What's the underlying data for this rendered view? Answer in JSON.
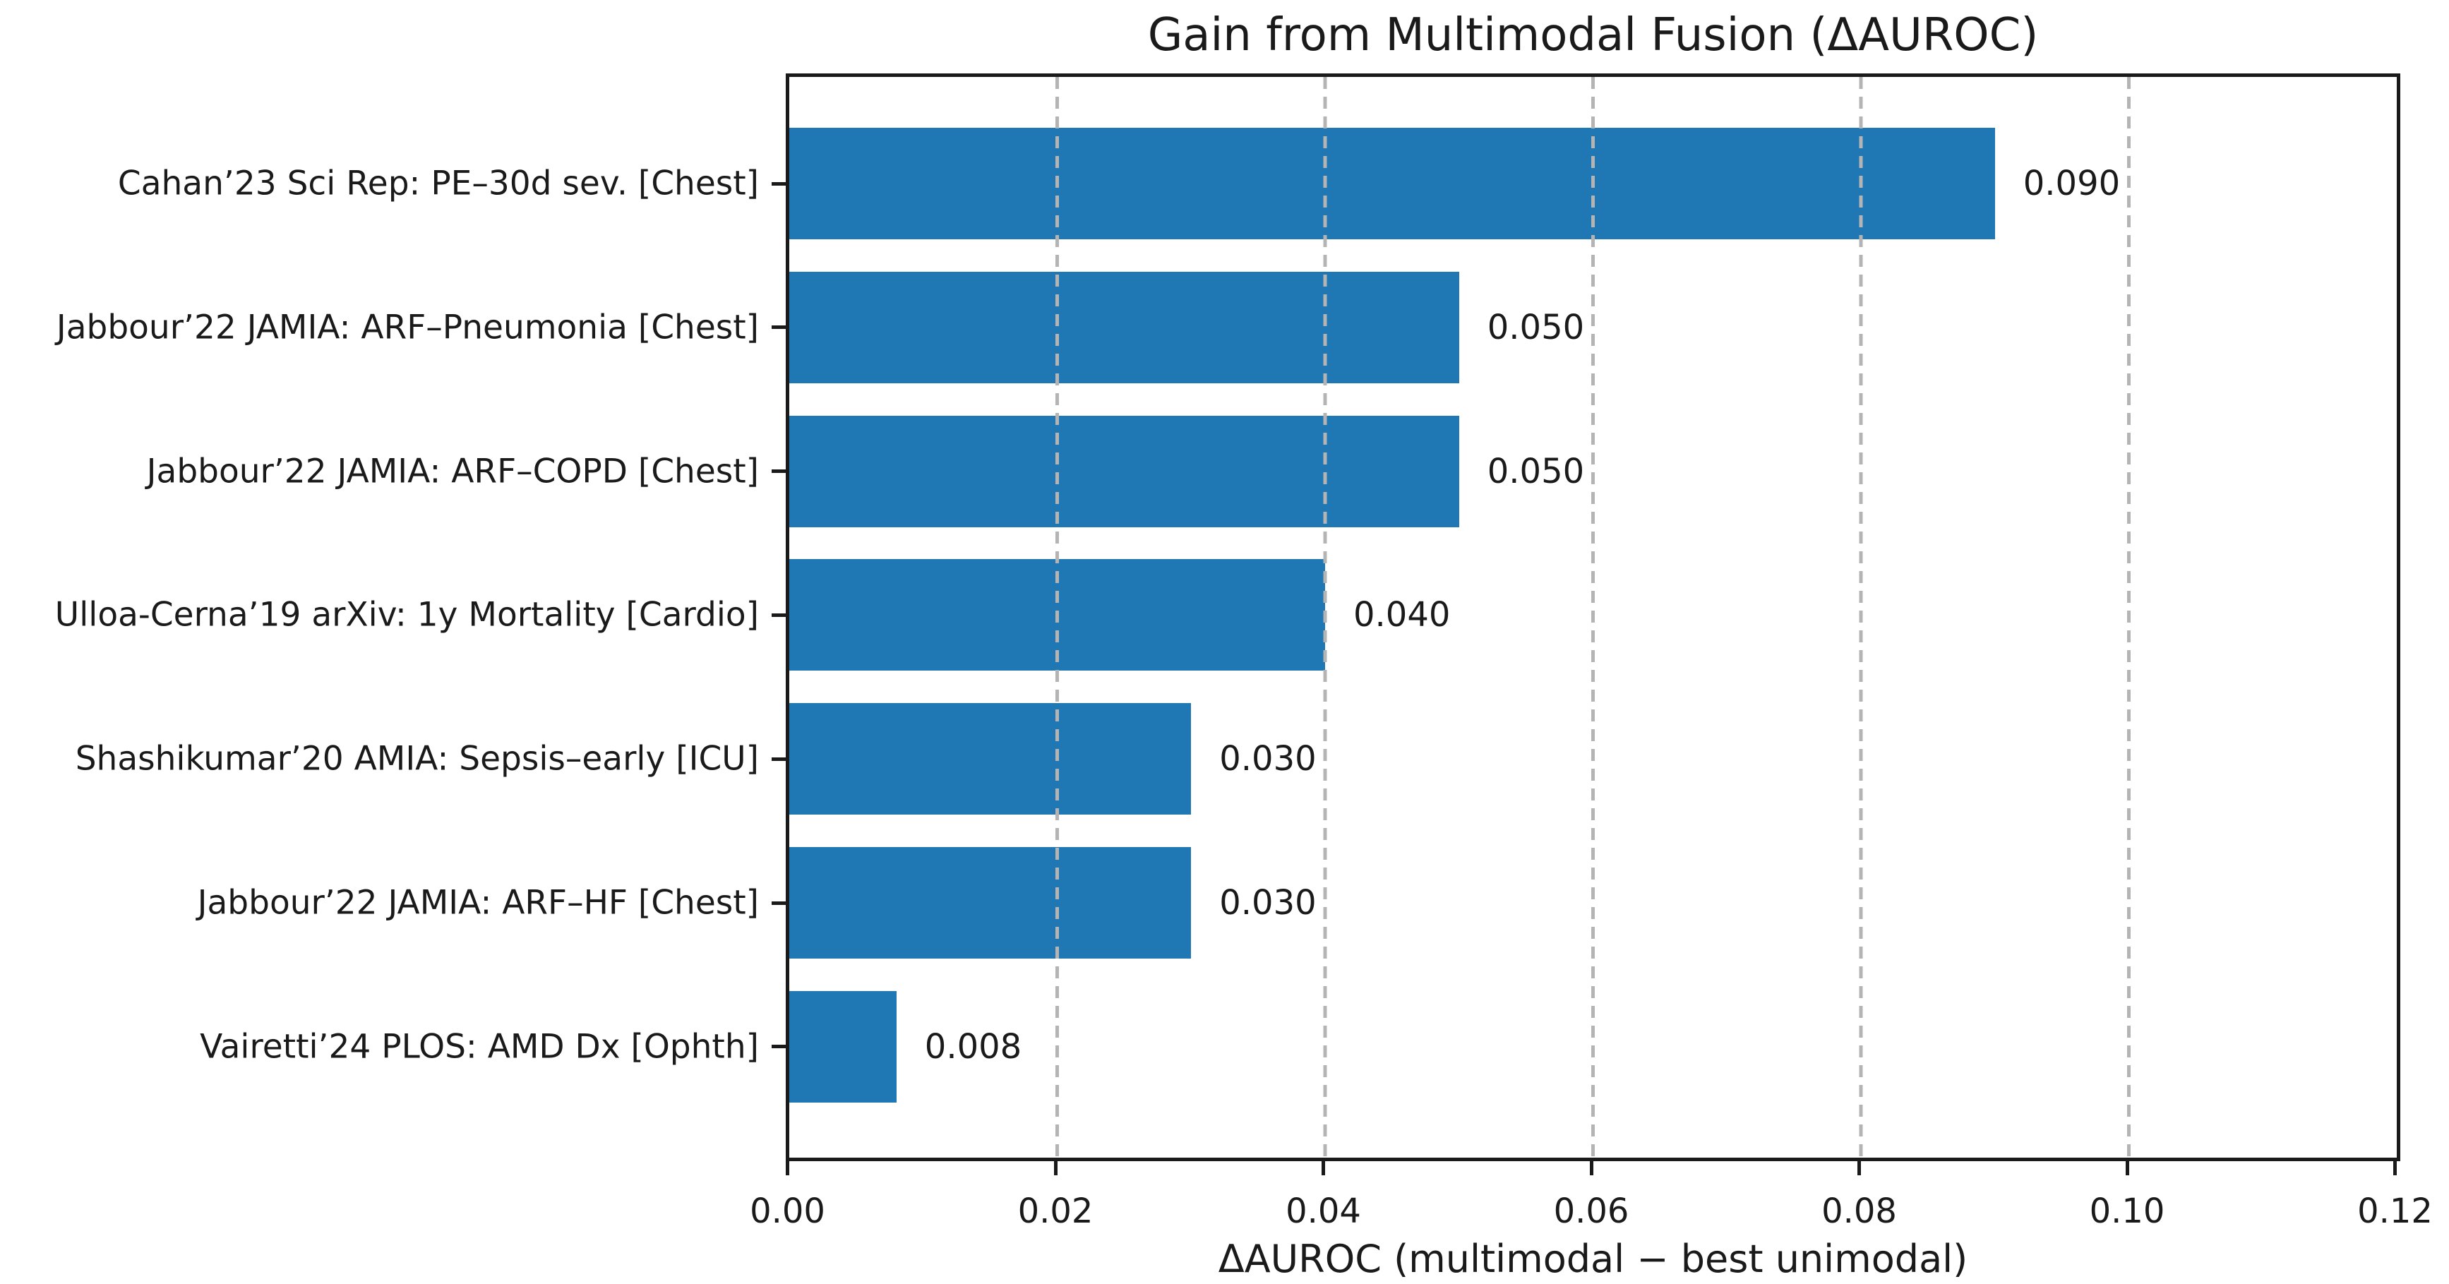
{
  "chart_data": {
    "type": "bar",
    "orientation": "horizontal",
    "title": "Gain from Multimodal Fusion (ΔAUROC)",
    "xlabel": "ΔAUROC (multimodal − best unimodal)",
    "ylabel": "",
    "xlim": [
      0,
      0.12
    ],
    "xticks": [
      0.0,
      0.02,
      0.04,
      0.06,
      0.08,
      0.1,
      0.12
    ],
    "xtick_labels": [
      "0.00",
      "0.02",
      "0.04",
      "0.06",
      "0.08",
      "0.10",
      "0.12"
    ],
    "grid": "vertical-dashed-over-bars",
    "legend": "none",
    "categories": [
      "Cahan’23 Sci Rep: PE–30d sev. [Chest]",
      "Jabbour’22 JAMIA: ARF–Pneumonia [Chest]",
      "Jabbour’22 JAMIA: ARF–COPD [Chest]",
      "Ulloa-Cerna’19 arXiv: 1y Mortality [Cardio]",
      "Shashikumar’20 AMIA: Sepsis–early [ICU]",
      "Jabbour’22 JAMIA: ARF–HF [Chest]",
      "Vairetti’24 PLOS: AMD Dx [Ophth]"
    ],
    "values": [
      0.09,
      0.05,
      0.05,
      0.04,
      0.03,
      0.03,
      0.008
    ],
    "value_labels": [
      "0.090",
      "0.050",
      "0.050",
      "0.040",
      "0.030",
      "0.030",
      "0.008"
    ],
    "colors": {
      "bar": "#1f77b4",
      "grid": "#b4b4b4",
      "spine": "#1a1a1a",
      "text": "#1a1a1a",
      "background": "#ffffff"
    }
  }
}
